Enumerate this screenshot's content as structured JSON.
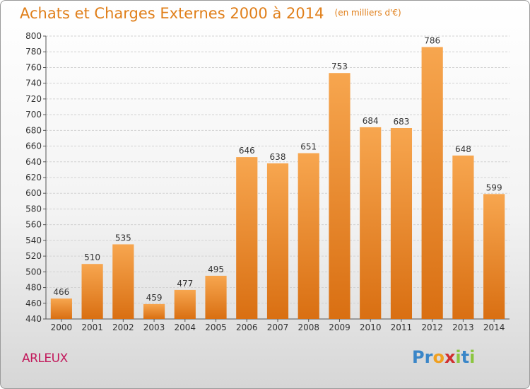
{
  "title": "Achats et Charges Externes 2000 à 2014",
  "unit_note": "(en milliers d'€)",
  "place_name": "ARLEUX",
  "logo": {
    "letters": [
      "P",
      "r",
      "o",
      "x",
      "i",
      "t",
      "i"
    ],
    "colors": [
      "#3a86c8",
      "#3a86c8",
      "#f0a020",
      "#d03030",
      "#8bc53f",
      "#3a86c8",
      "#8bc53f"
    ]
  },
  "colors": {
    "title": "#e07f1a",
    "bar_top": "#f7a64f",
    "bar_bottom": "#d96f12",
    "place": "#c2185b"
  },
  "chart_data": {
    "type": "bar",
    "categories": [
      "2000",
      "2001",
      "2002",
      "2003",
      "2004",
      "2005",
      "2006",
      "2007",
      "2008",
      "2009",
      "2010",
      "2011",
      "2012",
      "2013",
      "2014"
    ],
    "values": [
      466,
      510,
      535,
      459,
      477,
      495,
      646,
      638,
      651,
      753,
      684,
      683,
      786,
      648,
      599
    ],
    "title": "Achats et Charges Externes 2000 à 2014",
    "xlabel": "",
    "ylabel": "",
    "ylim": [
      440,
      800
    ],
    "yticks": [
      440,
      460,
      480,
      500,
      520,
      540,
      560,
      580,
      600,
      620,
      640,
      660,
      680,
      700,
      720,
      740,
      760,
      780,
      800
    ],
    "grid": "horizontal",
    "data_labels": true
  }
}
